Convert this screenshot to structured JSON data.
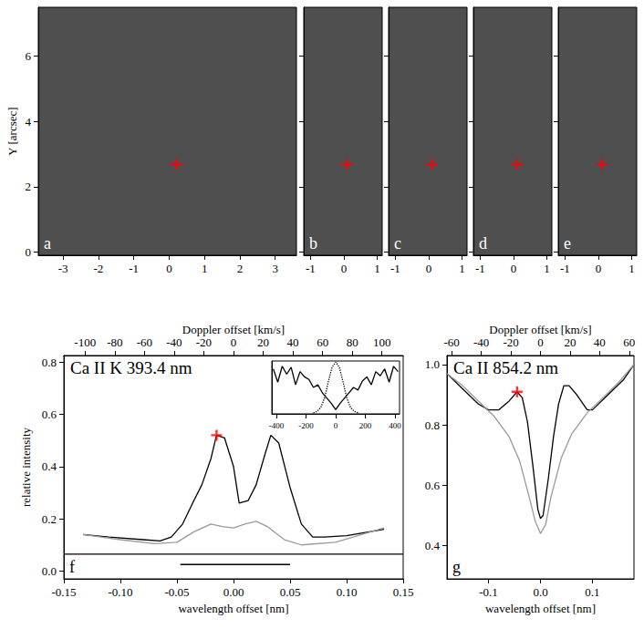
{
  "chart_data": [
    {
      "type": "image",
      "label": "a",
      "ylabel": "Y [arcsec]",
      "xlim": [
        -3.7,
        3.6
      ],
      "xticks": [
        -3,
        -2,
        -1,
        0,
        1,
        2,
        3
      ],
      "ylim": [
        -0.1,
        7.5
      ],
      "yticks": [
        0,
        2,
        4,
        6
      ],
      "series": [
        {
          "type": "scatter",
          "marker": "plus",
          "color": "#ff0000",
          "x": [
            0.2
          ],
          "values": [
            2.7
          ]
        }
      ]
    },
    {
      "type": "image",
      "label": "b",
      "tick_labels": "x",
      "xlim": [
        -1.2,
        1.15
      ],
      "xticks": [
        -1,
        0,
        1
      ],
      "ylim": [
        -0.1,
        7.5
      ],
      "yticks": [
        0,
        2,
        4,
        6
      ],
      "series": [
        {
          "type": "scatter",
          "marker": "plus",
          "color": "#ff0000",
          "x": [
            0.1
          ],
          "values": [
            2.7
          ]
        }
      ]
    },
    {
      "type": "image",
      "label": "c",
      "tick_labels": "x",
      "xlim": [
        -1.2,
        1.15
      ],
      "xticks": [
        -1,
        0,
        1
      ],
      "ylim": [
        -0.1,
        7.5
      ],
      "yticks": [
        0,
        2,
        4,
        6
      ],
      "series": [
        {
          "type": "scatter",
          "marker": "plus",
          "color": "#ff0000",
          "x": [
            0.1
          ],
          "values": [
            2.7
          ]
        }
      ]
    },
    {
      "type": "image",
      "label": "d",
      "tick_labels": "x",
      "xlim": [
        -1.2,
        1.15
      ],
      "xticks": [
        -1,
        0,
        1
      ],
      "ylim": [
        -0.1,
        7.5
      ],
      "yticks": [
        0,
        2,
        4,
        6
      ],
      "series": [
        {
          "type": "scatter",
          "marker": "plus",
          "color": "#ff0000",
          "x": [
            0.1
          ],
          "values": [
            2.7
          ]
        }
      ]
    },
    {
      "type": "image",
      "label": "e",
      "tick_labels": "x",
      "xlim": [
        -1.2,
        1.15
      ],
      "xticks": [
        -1,
        0,
        1
      ],
      "ylim": [
        -0.1,
        7.5
      ],
      "yticks": [
        0,
        2,
        4,
        6
      ],
      "series": [
        {
          "type": "scatter",
          "marker": "plus",
          "color": "#ff0000",
          "x": [
            0.1
          ],
          "values": [
            2.7
          ]
        }
      ]
    },
    {
      "type": "line",
      "title": "Ca II K 393.4 nm",
      "label": "f",
      "xlabel": "wavelength offset [nm]",
      "ylabel": "relative intensity",
      "x2label": "Doppler offset [km/s]",
      "xlim": [
        -0.15,
        0.15
      ],
      "xticks": [
        -0.15,
        {
          "value": -0.1,
          "label": "-0.10"
        },
        -0.05,
        {
          "value": 0,
          "label": "0.00"
        },
        0.05,
        {
          "value": 0.1,
          "label": "0.10"
        },
        0.15
      ],
      "x2lim": [
        -114.3,
        114.3
      ],
      "x2ticks": [
        -100,
        -80,
        -60,
        -40,
        -20,
        0,
        20,
        40,
        60,
        80,
        100
      ],
      "ylim": [
        -0.03,
        0.825
      ],
      "yticks": [
        {
          "value": 0,
          "label": "0.0"
        },
        0.2,
        0.4,
        0.6,
        0.8
      ],
      "series": [
        {
          "type": "line",
          "color": "#000000",
          "x": [
            -0.133,
            -0.11,
            -0.08,
            -0.065,
            -0.055,
            -0.045,
            -0.035,
            -0.028,
            -0.02,
            -0.015,
            -0.008,
            0.0,
            0.005,
            0.013,
            0.02,
            0.028,
            0.033,
            0.04,
            0.05,
            0.06,
            0.07,
            0.08,
            0.1,
            0.133
          ],
          "values": [
            0.14,
            0.13,
            0.12,
            0.115,
            0.13,
            0.18,
            0.27,
            0.33,
            0.43,
            0.52,
            0.51,
            0.4,
            0.26,
            0.27,
            0.33,
            0.45,
            0.52,
            0.49,
            0.32,
            0.18,
            0.13,
            0.13,
            0.135,
            0.16
          ]
        },
        {
          "type": "line",
          "color": "#999999",
          "x": [
            -0.133,
            -0.1,
            -0.07,
            -0.05,
            -0.035,
            -0.02,
            -0.01,
            0.0,
            0.01,
            0.02,
            0.03,
            0.045,
            0.06,
            0.09,
            0.133
          ],
          "values": [
            0.14,
            0.12,
            0.105,
            0.11,
            0.15,
            0.18,
            0.17,
            0.165,
            0.18,
            0.19,
            0.17,
            0.12,
            0.1,
            0.11,
            0.165
          ]
        },
        {
          "type": "line",
          "color": "#000000",
          "x": [
            -0.15,
            0.15
          ],
          "values": [
            0.065,
            0.065
          ]
        },
        {
          "type": "line",
          "color": "#000000",
          "x": [
            -0.047,
            0.05
          ],
          "values": [
            0.025,
            0.025
          ]
        },
        {
          "type": "scatter",
          "marker": "plus",
          "color": "#ff0000",
          "x": [
            -0.015
          ],
          "values": [
            0.52
          ]
        }
      ],
      "inset": {
        "type": "line",
        "tick_labels": "x",
        "xlim": [
          -430,
          430
        ],
        "xticks": [
          -400,
          -200,
          0,
          200,
          400
        ],
        "ylim": [
          0,
          1
        ],
        "series": [
          {
            "type": "line",
            "color": "#000000",
            "x": [
              -420,
              -390,
              -360,
              -330,
              -300,
              -270,
              -240,
              -210,
              -180,
              -150,
              -120,
              -90,
              -60,
              -30,
              0,
              30,
              60,
              90,
              120,
              150,
              180,
              210,
              240,
              270,
              300,
              330,
              360,
              390,
              420
            ],
            "values": [
              0.85,
              0.6,
              0.9,
              0.75,
              0.88,
              0.55,
              0.8,
              0.7,
              0.65,
              0.5,
              0.55,
              0.4,
              0.3,
              0.2,
              0.08,
              0.2,
              0.3,
              0.4,
              0.5,
              0.45,
              0.62,
              0.7,
              0.55,
              0.8,
              0.72,
              0.85,
              0.6,
              0.9,
              0.8
            ]
          },
          {
            "type": "line",
            "line_style": "dotted",
            "color": "#000000",
            "x": [
              -150,
              -125,
              -100,
              -75,
              -50,
              -25,
              0,
              25,
              50,
              75,
              100,
              125,
              150
            ],
            "values": [
              0.02,
              0.05,
              0.12,
              0.3,
              0.6,
              0.88,
              0.98,
              0.88,
              0.6,
              0.3,
              0.12,
              0.05,
              0.02
            ]
          }
        ]
      }
    },
    {
      "type": "line",
      "title": "Ca II 854.2 nm",
      "label": "g",
      "xlabel": "wavelength offset [nm]",
      "x2label": "Doppler offset [km/s]",
      "xlim": [
        -0.18,
        0.18
      ],
      "xticks": [
        -0.1,
        {
          "value": 0,
          "label": "0.0"
        },
        0.1
      ],
      "x2lim": [
        -63.2,
        63.2
      ],
      "x2ticks": [
        -60,
        -40,
        -20,
        0,
        20,
        40,
        60
      ],
      "ylim": [
        0.29,
        1.03
      ],
      "yticks": [
        0.4,
        0.6,
        0.8,
        {
          "value": 1,
          "label": "1.0"
        }
      ],
      "series": [
        {
          "type": "line",
          "color": "#000000",
          "x": [
            -0.18,
            -0.15,
            -0.12,
            -0.1,
            -0.08,
            -0.06,
            -0.045,
            -0.035,
            -0.025,
            -0.015,
            -0.005,
            0.0,
            0.005,
            0.015,
            0.025,
            0.035,
            0.045,
            0.055,
            0.07,
            0.09,
            0.1,
            0.13,
            0.16,
            0.18
          ],
          "values": [
            0.97,
            0.92,
            0.87,
            0.85,
            0.85,
            0.88,
            0.91,
            0.89,
            0.81,
            0.67,
            0.52,
            0.49,
            0.5,
            0.62,
            0.76,
            0.87,
            0.93,
            0.93,
            0.9,
            0.85,
            0.85,
            0.9,
            0.95,
            1.0
          ]
        },
        {
          "type": "line",
          "color": "#999999",
          "x": [
            -0.18,
            -0.15,
            -0.12,
            -0.09,
            -0.06,
            -0.04,
            -0.02,
            -0.01,
            0.0,
            0.01,
            0.02,
            0.04,
            0.06,
            0.09,
            0.12,
            0.15,
            0.18
          ],
          "values": [
            0.97,
            0.93,
            0.88,
            0.83,
            0.76,
            0.68,
            0.55,
            0.48,
            0.44,
            0.47,
            0.56,
            0.69,
            0.77,
            0.84,
            0.89,
            0.94,
            1.0
          ]
        },
        {
          "type": "scatter",
          "marker": "plus",
          "color": "#ff0000",
          "x": [
            -0.045
          ],
          "values": [
            0.91
          ]
        }
      ]
    }
  ]
}
